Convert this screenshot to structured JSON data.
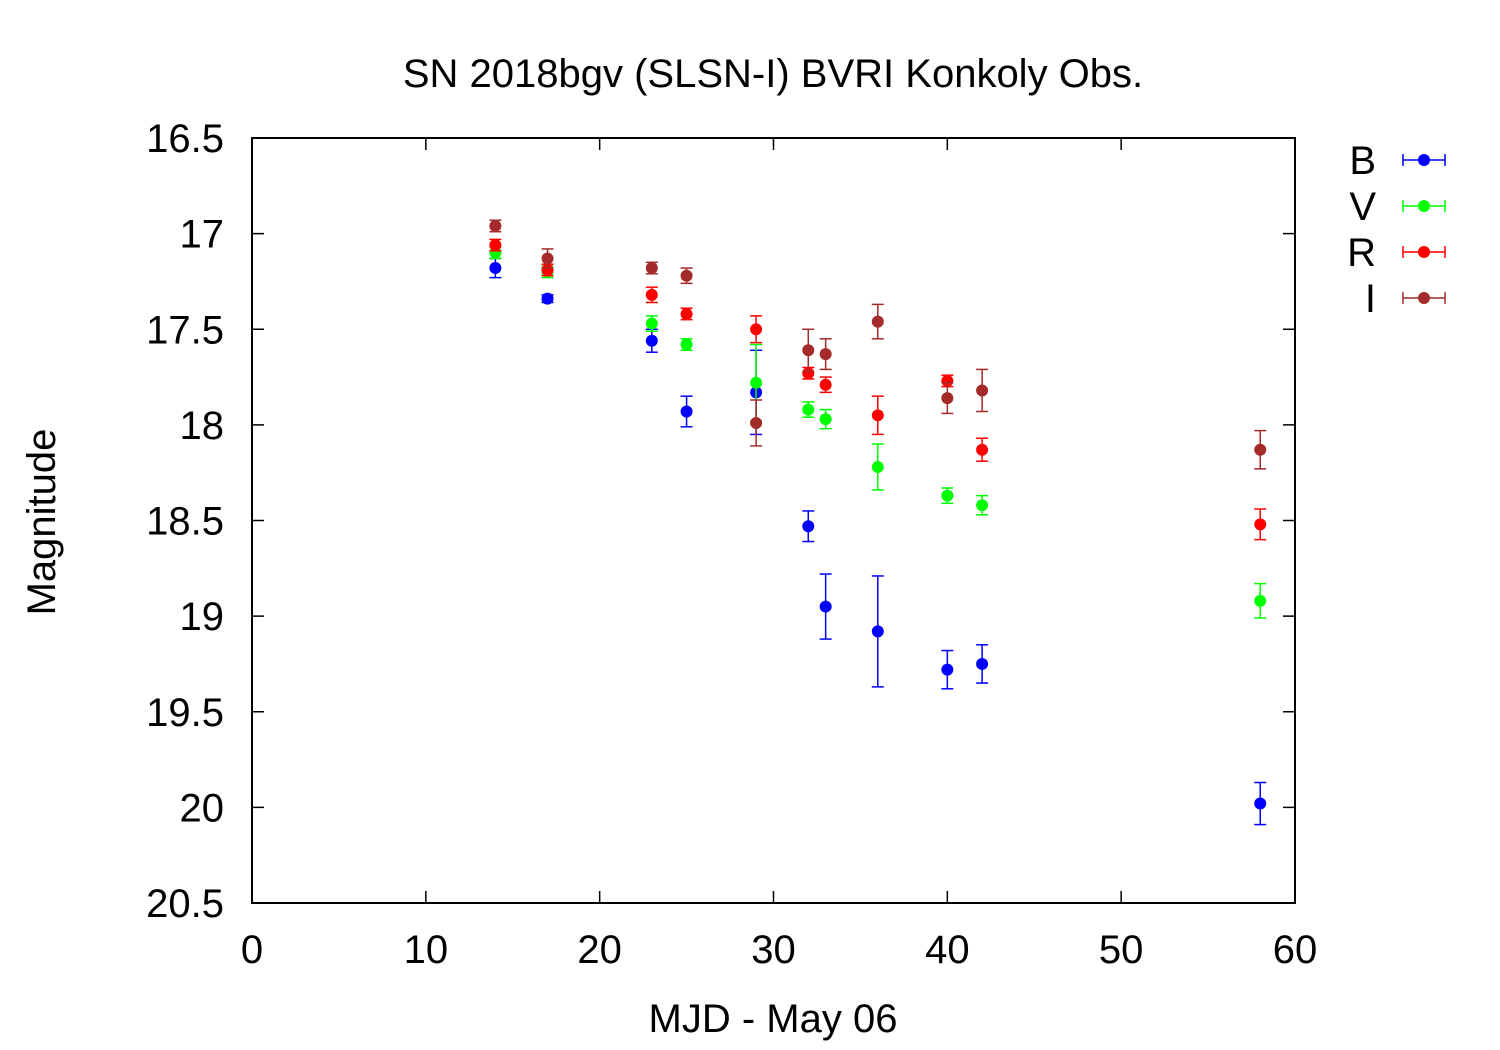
{
  "chart_data": {
    "type": "scatter",
    "title": "SN 2018bgv (SLSN-I) BVRI Konkoly Obs.",
    "xlabel": "MJD - May 06",
    "ylabel": "Magnitude",
    "xlim": [
      0,
      60
    ],
    "ylim": [
      16.5,
      20.5
    ],
    "y_inverted": true,
    "grid": false,
    "legend_position": "right",
    "x_ticks": [
      {
        "value": 0,
        "label": "0"
      },
      {
        "value": 10,
        "label": "10"
      },
      {
        "value": 20,
        "label": "20"
      },
      {
        "value": 30,
        "label": "30"
      },
      {
        "value": 40,
        "label": "40"
      },
      {
        "value": 50,
        "label": "50"
      },
      {
        "value": 60,
        "label": "60"
      }
    ],
    "y_ticks": [
      {
        "value": 16.5,
        "label": "16.5"
      },
      {
        "value": 17,
        "label": "17"
      },
      {
        "value": 17.5,
        "label": "17.5"
      },
      {
        "value": 18,
        "label": "18"
      },
      {
        "value": 18.5,
        "label": "18.5"
      },
      {
        "value": 19,
        "label": "19"
      },
      {
        "value": 19.5,
        "label": "19.5"
      },
      {
        "value": 20,
        "label": "20"
      },
      {
        "value": 20.5,
        "label": "20.5"
      }
    ],
    "series": [
      {
        "name": "B",
        "color": "#0000ff",
        "points": [
          {
            "x": 14,
            "y": 17.18,
            "err": 0.05
          },
          {
            "x": 17,
            "y": 17.34,
            "err": 0.02
          },
          {
            "x": 23,
            "y": 17.56,
            "err": 0.06
          },
          {
            "x": 25,
            "y": 17.93,
            "err": 0.08
          },
          {
            "x": 29,
            "y": 17.83,
            "err": 0.22
          },
          {
            "x": 32,
            "y": 18.53,
            "err": 0.08
          },
          {
            "x": 33,
            "y": 18.95,
            "err": 0.17
          },
          {
            "x": 36,
            "y": 19.08,
            "err": 0.29
          },
          {
            "x": 40,
            "y": 19.28,
            "err": 0.1
          },
          {
            "x": 42,
            "y": 19.25,
            "err": 0.1
          },
          {
            "x": 58,
            "y": 19.98,
            "err": 0.11
          }
        ]
      },
      {
        "name": "V",
        "color": "#00ff00",
        "points": [
          {
            "x": 14,
            "y": 17.1,
            "err": 0.03
          },
          {
            "x": 17,
            "y": 17.2,
            "err": 0.03
          },
          {
            "x": 23,
            "y": 17.47,
            "err": 0.04
          },
          {
            "x": 25,
            "y": 17.58,
            "err": 0.03
          },
          {
            "x": 29,
            "y": 17.78,
            "err": 0.2
          },
          {
            "x": 32,
            "y": 17.92,
            "err": 0.04
          },
          {
            "x": 33,
            "y": 17.97,
            "err": 0.05
          },
          {
            "x": 36,
            "y": 18.22,
            "err": 0.12
          },
          {
            "x": 40,
            "y": 18.37,
            "err": 0.04
          },
          {
            "x": 42,
            "y": 18.42,
            "err": 0.05
          },
          {
            "x": 58,
            "y": 18.92,
            "err": 0.09
          }
        ]
      },
      {
        "name": "R",
        "color": "#ff0000",
        "points": [
          {
            "x": 14,
            "y": 17.06,
            "err": 0.03
          },
          {
            "x": 17,
            "y": 17.19,
            "err": 0.03
          },
          {
            "x": 23,
            "y": 17.32,
            "err": 0.04
          },
          {
            "x": 25,
            "y": 17.42,
            "err": 0.03
          },
          {
            "x": 29,
            "y": 17.5,
            "err": 0.07
          },
          {
            "x": 32,
            "y": 17.73,
            "err": 0.03
          },
          {
            "x": 33,
            "y": 17.79,
            "err": 0.04
          },
          {
            "x": 36,
            "y": 17.95,
            "err": 0.1
          },
          {
            "x": 40,
            "y": 17.77,
            "err": 0.03
          },
          {
            "x": 42,
            "y": 18.13,
            "err": 0.06
          },
          {
            "x": 58,
            "y": 18.52,
            "err": 0.08
          }
        ]
      },
      {
        "name": "I",
        "color": "#a52a2a",
        "points": [
          {
            "x": 14,
            "y": 16.96,
            "err": 0.03
          },
          {
            "x": 17,
            "y": 17.13,
            "err": 0.05
          },
          {
            "x": 23,
            "y": 17.18,
            "err": 0.03
          },
          {
            "x": 25,
            "y": 17.22,
            "err": 0.04
          },
          {
            "x": 29,
            "y": 17.99,
            "err": 0.12
          },
          {
            "x": 32,
            "y": 17.61,
            "err": 0.11
          },
          {
            "x": 33,
            "y": 17.63,
            "err": 0.08
          },
          {
            "x": 36,
            "y": 17.46,
            "err": 0.09
          },
          {
            "x": 40,
            "y": 17.86,
            "err": 0.08
          },
          {
            "x": 42,
            "y": 17.82,
            "err": 0.11
          },
          {
            "x": 58,
            "y": 18.13,
            "err": 0.1
          }
        ]
      }
    ]
  }
}
